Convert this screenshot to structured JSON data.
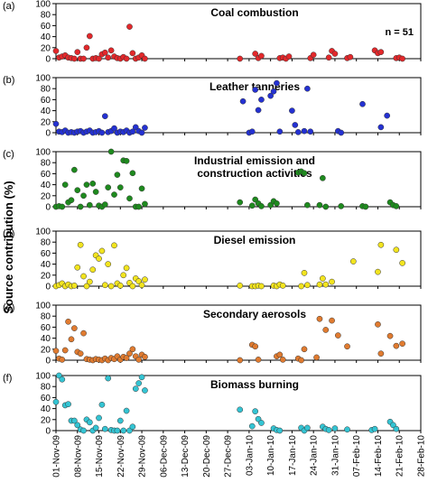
{
  "figure": {
    "ylabel": "Source contribution (%)",
    "x_ticks": [
      "01-Nov-09",
      "08-Nov-09",
      "15-Nov-09",
      "22-Nov-09",
      "29-Nov-09",
      "06-Dec-09",
      "13-Dec-09",
      "20-Dec-09",
      "27-Dec-09",
      "03-Jan-10",
      "10-Jan-10",
      "17-Jan-10",
      "24-Jan-10",
      "31-Jan-10",
      "07-Feb-10",
      "14-Feb-10",
      "21-Feb-10",
      "28-Feb-10"
    ],
    "y_ticks": [
      "0",
      "20",
      "40",
      "60",
      "80",
      "100"
    ],
    "n_label": "n = 51"
  },
  "chart_data": [
    {
      "type": "scatter",
      "panel": "(a)",
      "title": "Coal combustion",
      "color": "#e3282b",
      "ylim": [
        0,
        100
      ],
      "x": [
        "2009-11-01",
        "2009-11-02",
        "2009-11-03",
        "2009-11-04",
        "2009-11-05",
        "2009-11-06",
        "2009-11-07",
        "2009-11-08",
        "2009-11-09",
        "2009-11-10",
        "2009-11-11",
        "2009-11-12",
        "2009-11-13",
        "2009-11-14",
        "2009-11-15",
        "2009-11-16",
        "2009-11-17",
        "2009-11-18",
        "2009-11-19",
        "2009-11-20",
        "2009-11-21",
        "2009-11-22",
        "2009-11-23",
        "2009-11-24",
        "2009-11-25",
        "2009-11-26",
        "2009-11-27",
        "2009-11-28",
        "2009-11-29",
        "2009-11-30",
        "2009-12-31",
        "2010-01-05",
        "2010-01-06",
        "2010-01-07",
        "2010-01-13",
        "2010-01-14",
        "2010-01-15",
        "2010-01-16",
        "2010-01-23",
        "2010-01-24",
        "2010-01-29",
        "2010-01-30",
        "2010-01-31",
        "2010-02-04",
        "2010-02-05",
        "2010-02-13",
        "2010-02-14",
        "2010-02-15",
        "2010-02-20",
        "2010-02-21",
        "2010-02-22"
      ],
      "y": [
        14,
        2,
        4,
        6,
        2,
        1,
        0,
        12,
        0,
        0,
        20,
        41,
        0,
        1,
        0,
        8,
        11,
        2,
        15,
        4,
        1,
        0,
        3,
        0,
        58,
        10,
        0,
        2,
        6,
        0,
        0,
        9,
        1,
        5,
        1,
        2,
        0,
        4,
        1,
        7,
        2,
        14,
        9,
        1,
        3,
        15,
        10,
        12,
        1,
        2,
        0
      ]
    },
    {
      "type": "scatter",
      "panel": "(b)",
      "title": "Leather tanneries",
      "color": "#2431d2",
      "ylim": [
        0,
        100
      ],
      "x": [
        "2009-11-01",
        "2009-11-02",
        "2009-11-03",
        "2009-11-04",
        "2009-11-05",
        "2009-11-06",
        "2009-11-07",
        "2009-11-08",
        "2009-11-09",
        "2009-11-10",
        "2009-11-11",
        "2009-11-12",
        "2009-11-13",
        "2009-11-14",
        "2009-11-15",
        "2009-11-16",
        "2009-11-17",
        "2009-11-18",
        "2009-11-19",
        "2009-11-20",
        "2009-11-21",
        "2009-11-22",
        "2009-11-23",
        "2009-11-24",
        "2009-11-25",
        "2009-11-26",
        "2009-11-27",
        "2009-11-28",
        "2009-11-29",
        "2009-11-30",
        "2010-01-01",
        "2010-01-03",
        "2010-01-04",
        "2010-01-05",
        "2010-01-06",
        "2010-01-07",
        "2010-01-10",
        "2010-01-11",
        "2010-01-12",
        "2010-01-13",
        "2010-01-17",
        "2010-01-18",
        "2010-01-19",
        "2010-01-21",
        "2010-01-22",
        "2010-01-23",
        "2010-02-01",
        "2010-02-02",
        "2010-02-09",
        "2010-02-15",
        "2010-02-17"
      ],
      "y": [
        16,
        2,
        1,
        4,
        0,
        1,
        0,
        2,
        3,
        0,
        2,
        4,
        0,
        1,
        3,
        0,
        30,
        1,
        3,
        8,
        0,
        2,
        1,
        4,
        0,
        2,
        10,
        3,
        0,
        9,
        57,
        0,
        2,
        78,
        41,
        60,
        67,
        75,
        90,
        2,
        40,
        14,
        1,
        3,
        80,
        2,
        3,
        0,
        52,
        10,
        31
      ]
    },
    {
      "type": "scatter",
      "panel": "(c)",
      "title": "Industrial emission and construction activities",
      "color": "#1e8a1e",
      "ylim": [
        0,
        100
      ],
      "x": [
        "2009-11-01",
        "2009-11-02",
        "2009-11-03",
        "2009-11-04",
        "2009-11-05",
        "2009-11-06",
        "2009-11-07",
        "2009-11-08",
        "2009-11-09",
        "2009-11-10",
        "2009-11-11",
        "2009-11-12",
        "2009-11-13",
        "2009-11-14",
        "2009-11-15",
        "2009-11-16",
        "2009-11-17",
        "2009-11-18",
        "2009-11-19",
        "2009-11-20",
        "2009-11-21",
        "2009-11-22",
        "2009-11-23",
        "2009-11-24",
        "2009-11-25",
        "2009-11-26",
        "2009-11-27",
        "2009-11-28",
        "2009-11-29",
        "2009-11-30",
        "2009-12-31",
        "2010-01-04",
        "2010-01-05",
        "2010-01-06",
        "2010-01-07",
        "2010-01-10",
        "2010-01-11",
        "2010-01-12",
        "2010-01-19",
        "2010-01-20",
        "2010-01-21",
        "2010-01-22",
        "2010-01-26",
        "2010-01-27",
        "2010-01-28",
        "2010-02-02",
        "2010-02-09",
        "2010-02-10",
        "2010-02-18",
        "2010-02-19",
        "2010-02-20"
      ],
      "y": [
        0,
        1,
        0,
        40,
        8,
        12,
        67,
        30,
        0,
        20,
        40,
        3,
        42,
        27,
        2,
        0,
        4,
        35,
        100,
        22,
        58,
        35,
        84,
        83,
        15,
        61,
        0,
        0,
        33,
        5,
        8,
        2,
        13,
        6,
        1,
        3,
        10,
        6,
        62,
        64,
        61,
        3,
        3,
        52,
        0,
        1,
        1,
        0,
        8,
        3,
        1
      ]
    },
    {
      "type": "scatter",
      "panel": "(d)",
      "title": "Diesel emission",
      "color": "#f2e41f",
      "ylim": [
        0,
        100
      ],
      "x": [
        "2009-11-01",
        "2009-11-02",
        "2009-11-03",
        "2009-11-04",
        "2009-11-05",
        "2009-11-06",
        "2009-11-07",
        "2009-11-08",
        "2009-11-09",
        "2009-11-10",
        "2009-11-11",
        "2009-11-12",
        "2009-11-13",
        "2009-11-14",
        "2009-11-15",
        "2009-11-16",
        "2009-11-17",
        "2009-11-18",
        "2009-11-19",
        "2009-11-20",
        "2009-11-21",
        "2009-11-22",
        "2009-11-23",
        "2009-11-24",
        "2009-11-25",
        "2009-11-26",
        "2009-11-27",
        "2009-11-28",
        "2009-11-29",
        "2009-11-30",
        "2009-12-31",
        "2010-01-04",
        "2010-01-05",
        "2010-01-06",
        "2010-01-07",
        "2010-01-11",
        "2010-01-12",
        "2010-01-13",
        "2010-01-14",
        "2010-01-20",
        "2010-01-21",
        "2010-01-22",
        "2010-01-26",
        "2010-01-27",
        "2010-01-28",
        "2010-01-30",
        "2010-02-06",
        "2010-02-14",
        "2010-02-15",
        "2010-02-20",
        "2010-02-22"
      ],
      "y": [
        0,
        2,
        5,
        0,
        3,
        0,
        1,
        34,
        75,
        18,
        0,
        8,
        30,
        56,
        50,
        64,
        2,
        40,
        0,
        74,
        5,
        1,
        20,
        33,
        6,
        0,
        14,
        9,
        2,
        12,
        1,
        0,
        0,
        1,
        0,
        1,
        0,
        3,
        1,
        0,
        24,
        2,
        3,
        14,
        3,
        8,
        45,
        26,
        75,
        66,
        42
      ]
    },
    {
      "type": "scatter",
      "panel": "(e)",
      "title": "Secondary aerosols",
      "color": "#e07b30",
      "ylim": [
        0,
        100
      ],
      "x": [
        "2009-11-01",
        "2009-11-02",
        "2009-11-03",
        "2009-11-04",
        "2009-11-05",
        "2009-11-06",
        "2009-11-07",
        "2009-11-08",
        "2009-11-09",
        "2009-11-10",
        "2009-11-11",
        "2009-11-12",
        "2009-11-13",
        "2009-11-14",
        "2009-11-15",
        "2009-11-16",
        "2009-11-17",
        "2009-11-18",
        "2009-11-19",
        "2009-11-20",
        "2009-11-21",
        "2009-11-22",
        "2009-11-23",
        "2009-11-24",
        "2009-11-25",
        "2009-11-26",
        "2009-11-27",
        "2009-11-28",
        "2009-11-29",
        "2009-11-30",
        "2009-12-31",
        "2010-01-04",
        "2010-01-05",
        "2010-01-06",
        "2010-01-12",
        "2010-01-13",
        "2010-01-14",
        "2010-01-19",
        "2010-01-20",
        "2010-01-21",
        "2010-01-25",
        "2010-01-26",
        "2010-01-28",
        "2010-01-30",
        "2010-02-01",
        "2010-02-04",
        "2010-02-14",
        "2010-02-15",
        "2010-02-18",
        "2010-02-20",
        "2010-02-22"
      ],
      "y": [
        17,
        3,
        1,
        18,
        70,
        38,
        58,
        15,
        12,
        49,
        2,
        1,
        0,
        2,
        1,
        0,
        3,
        0,
        4,
        2,
        7,
        1,
        6,
        4,
        12,
        20,
        7,
        1,
        10,
        6,
        0,
        28,
        25,
        1,
        7,
        10,
        1,
        3,
        0,
        20,
        5,
        75,
        55,
        72,
        45,
        25,
        65,
        12,
        44,
        26,
        30
      ]
    },
    {
      "type": "scatter",
      "panel": "(f)",
      "title": "Biomass burning",
      "color": "#34c4d3",
      "ylim": [
        0,
        100
      ],
      "x": [
        "2009-11-01",
        "2009-11-02",
        "2009-11-03",
        "2009-11-04",
        "2009-11-05",
        "2009-11-06",
        "2009-11-07",
        "2009-11-08",
        "2009-11-09",
        "2009-11-10",
        "2009-11-11",
        "2009-11-12",
        "2009-11-13",
        "2009-11-14",
        "2009-11-15",
        "2009-11-16",
        "2009-11-17",
        "2009-11-18",
        "2009-11-19",
        "2009-11-20",
        "2009-11-21",
        "2009-11-22",
        "2009-11-23",
        "2009-11-24",
        "2009-11-25",
        "2009-11-26",
        "2009-11-27",
        "2009-11-28",
        "2009-11-29",
        "2009-11-30",
        "2009-12-31",
        "2010-01-04",
        "2010-01-05",
        "2010-01-06",
        "2010-01-07",
        "2010-01-11",
        "2010-01-12",
        "2010-01-13",
        "2010-01-20",
        "2010-01-21",
        "2010-01-22",
        "2010-01-27",
        "2010-01-28",
        "2010-01-29",
        "2010-01-31",
        "2010-02-04",
        "2010-02-12",
        "2010-02-13",
        "2010-02-18",
        "2010-02-19",
        "2010-02-20"
      ],
      "y": [
        52,
        100,
        93,
        46,
        48,
        18,
        18,
        10,
        2,
        0,
        20,
        15,
        0,
        5,
        23,
        47,
        3,
        95,
        1,
        0,
        0,
        18,
        0,
        36,
        0,
        7,
        76,
        86,
        97,
        73,
        38,
        8,
        35,
        21,
        14,
        4,
        1,
        0,
        5,
        0,
        5,
        7,
        3,
        1,
        4,
        2,
        1,
        3,
        16,
        10,
        3
      ]
    }
  ]
}
